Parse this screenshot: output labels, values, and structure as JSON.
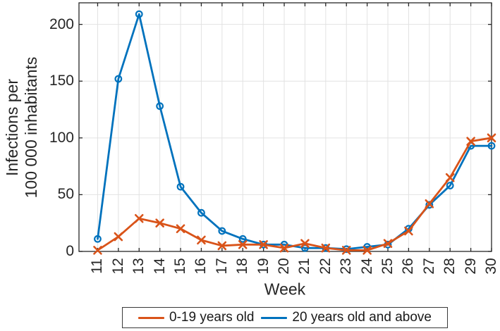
{
  "chart_data": {
    "type": "line",
    "title": "",
    "xlabel": "Week",
    "ylabel": "Infections per 100 000 inhabitants",
    "ylabel_lines": [
      "Infections per",
      "100 000 inhabitants"
    ],
    "x": [
      11,
      12,
      13,
      14,
      15,
      16,
      17,
      18,
      19,
      20,
      21,
      22,
      23,
      24,
      25,
      26,
      27,
      28,
      29,
      30
    ],
    "xticks": [
      11,
      12,
      13,
      14,
      15,
      16,
      17,
      18,
      19,
      20,
      21,
      22,
      23,
      24,
      25,
      26,
      27,
      28,
      29,
      30
    ],
    "yticks": [
      0,
      50,
      100,
      150,
      200
    ],
    "ylim": [
      0,
      219
    ],
    "xlim": [
      10.1,
      30
    ],
    "grid": true,
    "legend_position": "bottom-outside",
    "series": [
      {
        "name": "0-19 years old",
        "marker": "x",
        "color": "#D95319",
        "values": [
          1,
          13,
          29,
          25,
          20,
          10,
          5,
          6,
          6,
          3,
          7,
          3,
          1,
          1,
          7,
          18,
          42,
          65,
          97,
          100
        ]
      },
      {
        "name": "20 years old and above",
        "marker": "o",
        "color": "#0072BD",
        "values": [
          11,
          152,
          209,
          128,
          57,
          34,
          18,
          11,
          6,
          6,
          3,
          3,
          2,
          4,
          6,
          20,
          41,
          58,
          93,
          93
        ]
      }
    ],
    "colors": {
      "axis": "#262626",
      "grid": "#E2E2E2",
      "background": "#FFFFFF",
      "tick_text": "#262626"
    }
  }
}
